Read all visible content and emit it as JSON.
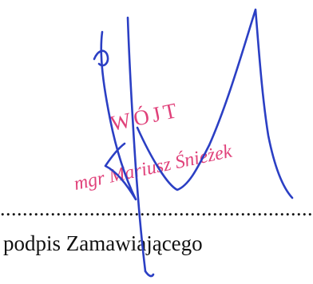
{
  "stamp": {
    "title": "WÓJT",
    "name": "mgr Mariusz Śnieżek",
    "color": "#e0417a"
  },
  "signature_line": {
    "dots": "....................................................................."
  },
  "caption": {
    "text": "podpis Zamawiającego"
  },
  "signature": {
    "ink_color": "#2b3fc4"
  }
}
